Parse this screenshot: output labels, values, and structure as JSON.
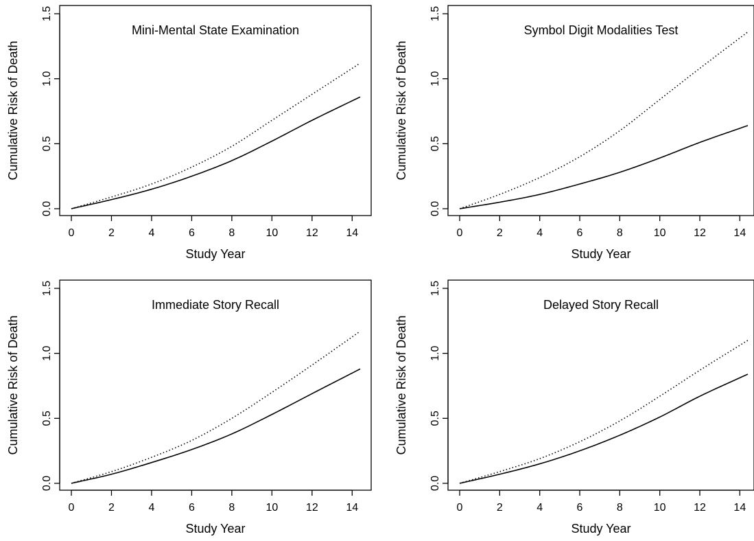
{
  "chart_data": [
    {
      "type": "line",
      "title": "Mini-Mental State Examination",
      "xlabel": "Study Year",
      "ylabel": "Cumulative Risk of Death",
      "xlim": [
        0,
        14.4
      ],
      "ylim": [
        0,
        1.5
      ],
      "xticks": [
        "0",
        "2",
        "4",
        "6",
        "8",
        "10",
        "12",
        "14"
      ],
      "yticks": [
        "0.0",
        "0.5",
        "1.0",
        "1.5"
      ],
      "grid": false,
      "legend": "none",
      "x": [
        0,
        2,
        4,
        6,
        8,
        10,
        12,
        14.4
      ],
      "series": [
        {
          "style": "solid",
          "values": [
            0,
            0.07,
            0.15,
            0.25,
            0.37,
            0.52,
            0.68,
            0.86
          ]
        },
        {
          "style": "dotted",
          "values": [
            0,
            0.09,
            0.19,
            0.32,
            0.48,
            0.68,
            0.88,
            1.12
          ]
        }
      ]
    },
    {
      "type": "line",
      "title": "Symbol Digit Modalities Test",
      "xlabel": "Study Year",
      "ylabel": "Cumulative Risk of Death",
      "xlim": [
        0,
        14.4
      ],
      "ylim": [
        0,
        1.5
      ],
      "xticks": [
        "0",
        "2",
        "4",
        "6",
        "8",
        "10",
        "12",
        "14"
      ],
      "yticks": [
        "0.0",
        "0.5",
        "1.0",
        "1.5"
      ],
      "grid": false,
      "legend": "none",
      "x": [
        0,
        2,
        4,
        6,
        8,
        10,
        12,
        14.4
      ],
      "series": [
        {
          "style": "solid",
          "values": [
            0,
            0.05,
            0.11,
            0.19,
            0.28,
            0.39,
            0.51,
            0.64
          ]
        },
        {
          "style": "dotted",
          "values": [
            0,
            0.11,
            0.24,
            0.4,
            0.6,
            0.84,
            1.08,
            1.36
          ]
        }
      ]
    },
    {
      "type": "line",
      "title": "Immediate Story Recall",
      "xlabel": "Study Year",
      "ylabel": "Cumulative Risk of Death",
      "xlim": [
        0,
        14.4
      ],
      "ylim": [
        0,
        1.5
      ],
      "xticks": [
        "0",
        "2",
        "4",
        "6",
        "8",
        "10",
        "12",
        "14"
      ],
      "yticks": [
        "0.0",
        "0.5",
        "1.0",
        "1.5"
      ],
      "grid": false,
      "legend": "none",
      "x": [
        0,
        2,
        4,
        6,
        8,
        10,
        12,
        14.4
      ],
      "series": [
        {
          "style": "solid",
          "values": [
            0,
            0.07,
            0.16,
            0.26,
            0.38,
            0.53,
            0.69,
            0.88
          ]
        },
        {
          "style": "dotted",
          "values": [
            0,
            0.09,
            0.2,
            0.33,
            0.5,
            0.7,
            0.91,
            1.17
          ]
        }
      ]
    },
    {
      "type": "line",
      "title": "Delayed Story Recall",
      "xlabel": "Study Year",
      "ylabel": "Cumulative Risk of Death",
      "xlim": [
        0,
        14.4
      ],
      "ylim": [
        0,
        1.5
      ],
      "xticks": [
        "0",
        "2",
        "4",
        "6",
        "8",
        "10",
        "12",
        "14"
      ],
      "yticks": [
        "0.0",
        "0.5",
        "1.0",
        "1.5"
      ],
      "grid": false,
      "legend": "none",
      "x": [
        0,
        2,
        4,
        6,
        8,
        10,
        12,
        14.4
      ],
      "series": [
        {
          "style": "solid",
          "values": [
            0,
            0.07,
            0.15,
            0.25,
            0.37,
            0.51,
            0.67,
            0.84
          ]
        },
        {
          "style": "dotted",
          "values": [
            0,
            0.09,
            0.19,
            0.32,
            0.48,
            0.67,
            0.87,
            1.1
          ]
        }
      ]
    }
  ]
}
